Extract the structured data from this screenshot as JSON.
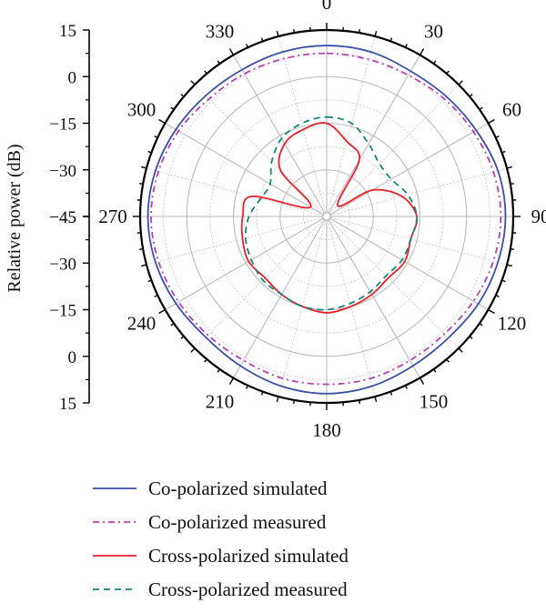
{
  "chart_data": {
    "type": "polar-line",
    "ylabel": "Relative power (dB)",
    "radial_scale": {
      "min": -45,
      "max": 15,
      "step": 15,
      "minor_step": 7.5
    },
    "angular_ticks": [
      "0",
      "30",
      "60",
      "90",
      "120",
      "150",
      "180",
      "210",
      "240",
      "270",
      "300",
      "330"
    ],
    "radial_tick_labels_top": [
      "15",
      "0",
      "−15",
      "−30",
      "−45"
    ],
    "radial_tick_labels_bottom": [
      "−45",
      "−30",
      "−15",
      "0",
      "15"
    ],
    "angles": [
      0,
      15,
      30,
      45,
      60,
      75,
      90,
      105,
      120,
      135,
      150,
      165,
      180,
      195,
      210,
      225,
      240,
      255,
      270,
      285,
      300,
      315,
      330,
      345
    ],
    "series": [
      {
        "name": "Co-polarized simulated",
        "color": "#3b4fa8",
        "dash": "",
        "values": [
          10,
          9.8,
          9,
          9.5,
          10.5,
          12,
          12.5,
          12,
          11.3,
          10.3,
          10.5,
          11.5,
          12,
          11.5,
          10.5,
          10,
          11,
          12,
          12.5,
          12,
          11,
          10,
          9.5,
          9.8
        ]
      },
      {
        "name": "Co-polarized measured",
        "color": "#b440b4",
        "dash": "7,4,2,4",
        "values": [
          7.5,
          7.3,
          7.5,
          8.5,
          9.5,
          10.5,
          11,
          10.5,
          9.5,
          8.5,
          8.5,
          9,
          9,
          9,
          8.5,
          9,
          10,
          11,
          11.5,
          11,
          10,
          8.5,
          8,
          7.6
        ]
      },
      {
        "name": "Cross-polarized simulated",
        "color": "#e8202a",
        "dash": "",
        "values": [
          -15,
          -20,
          -24,
          -40,
          -28,
          -20,
          -16,
          -17,
          -16,
          -17,
          -16,
          -15,
          -14,
          -15,
          -16,
          -17,
          -16,
          -17,
          -18,
          -20,
          -39,
          -24,
          -18,
          -16
        ]
      },
      {
        "name": "Cross-polarized measured",
        "color": "#18847a",
        "dash": "7,5",
        "values": [
          -13,
          -14,
          -18,
          -21,
          -21,
          -18,
          -16,
          -17,
          -17,
          -18,
          -17,
          -16,
          -15,
          -15,
          -16,
          -16,
          -17,
          -18,
          -20,
          -23,
          -24,
          -20,
          -16,
          -14
        ]
      }
    ]
  }
}
